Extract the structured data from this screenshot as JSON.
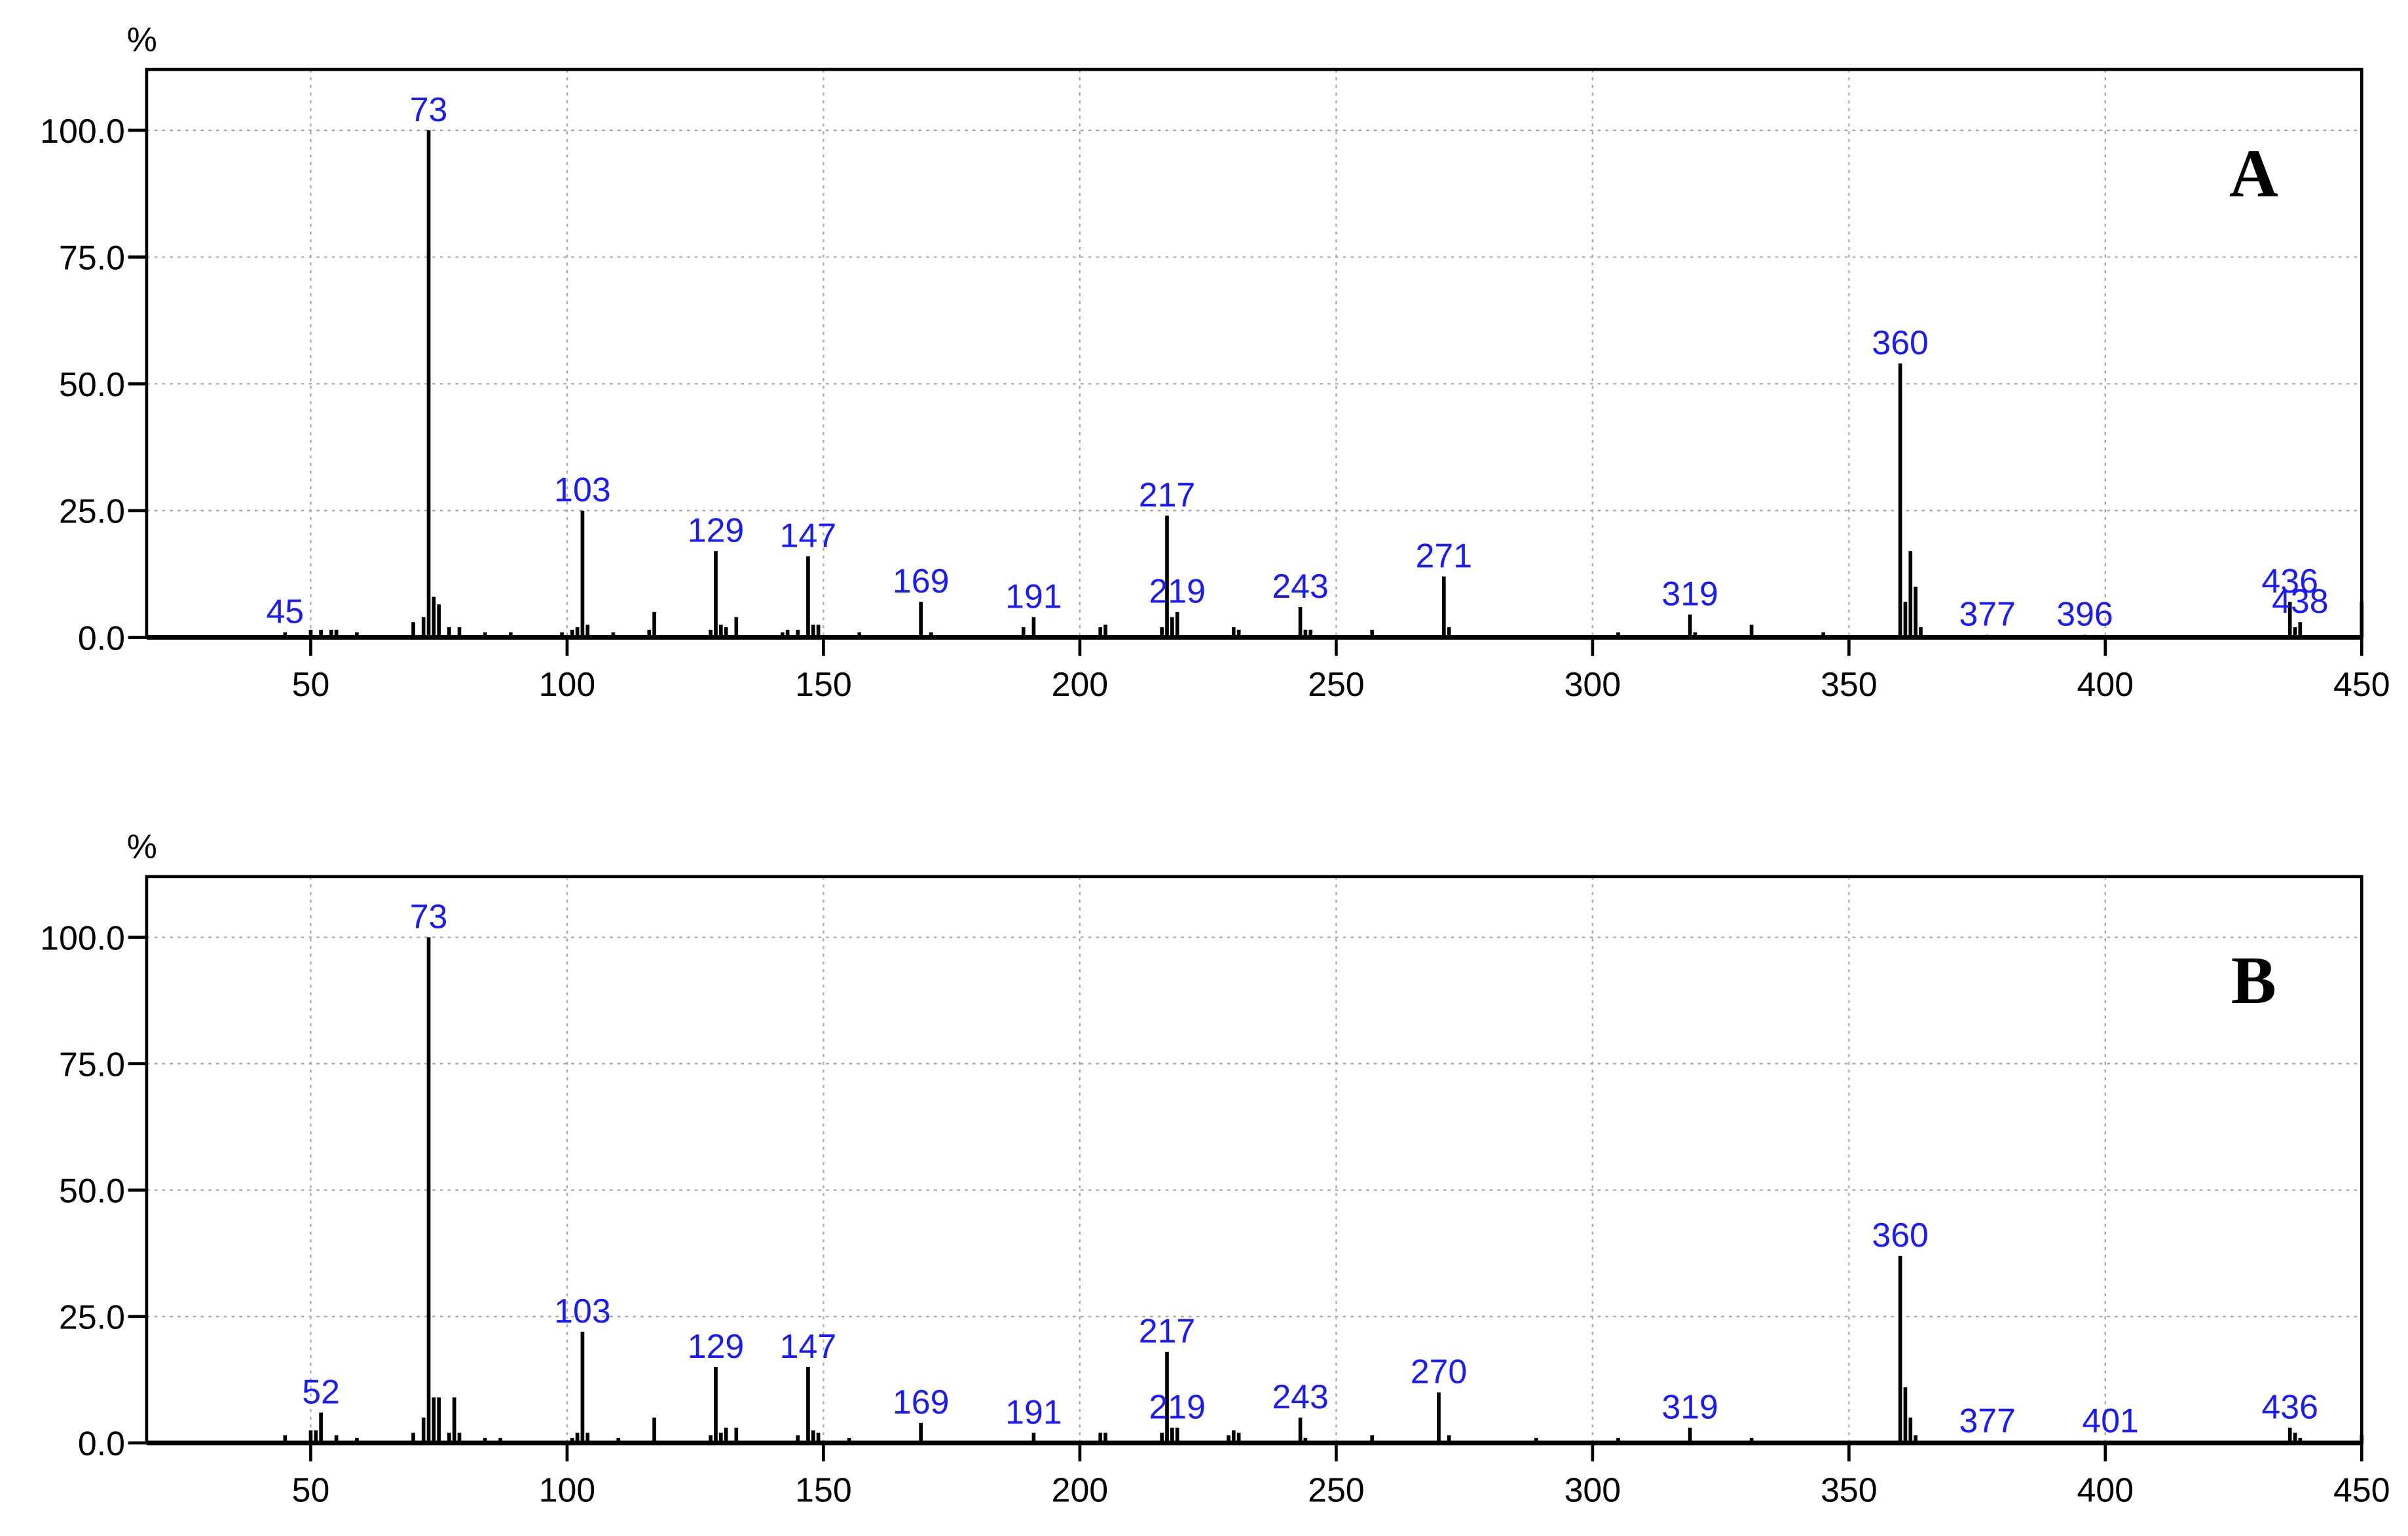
{
  "chart_data": [
    {
      "type": "bar",
      "title": "A",
      "y_label": "%",
      "color": "#000000",
      "label_color": "#1a1aff",
      "grid": true,
      "xlim": [
        18,
        450
      ],
      "ylim": [
        0,
        112
      ],
      "xticks": [
        50,
        100,
        150,
        200,
        250,
        300,
        350,
        400,
        450
      ],
      "yticks": [
        {
          "value": 0,
          "label": "0.0"
        },
        {
          "value": 25,
          "label": "25.0"
        },
        {
          "value": 50,
          "label": "50.0"
        },
        {
          "value": 75,
          "label": "75.0"
        },
        {
          "value": 100,
          "label": "100.0"
        }
      ],
      "x": [
        45,
        50,
        52,
        54,
        55,
        59,
        70,
        72,
        73,
        74,
        75,
        77,
        79,
        84,
        89,
        99,
        101,
        102,
        103,
        104,
        109,
        116,
        117,
        128,
        129,
        130,
        131,
        133,
        142,
        143,
        145,
        147,
        148,
        149,
        157,
        169,
        171,
        189,
        191,
        204,
        205,
        216,
        217,
        218,
        219,
        230,
        231,
        243,
        244,
        245,
        257,
        271,
        272,
        305,
        319,
        320,
        331,
        345,
        360,
        361,
        362,
        363,
        364,
        377,
        396,
        436,
        437,
        438,
        450
      ],
      "values": [
        1,
        1.5,
        1.5,
        1.5,
        1.5,
        1,
        3,
        4,
        100,
        8,
        6.5,
        2,
        2,
        1,
        1,
        1,
        1.5,
        2,
        25,
        2.5,
        1,
        1.5,
        5,
        1.5,
        17,
        2.5,
        2,
        4,
        1,
        1.5,
        1.5,
        16,
        2.5,
        2.5,
        1,
        7,
        1,
        2,
        4,
        2,
        2.5,
        2,
        24,
        4,
        5,
        2,
        1.5,
        6,
        1.5,
        1.5,
        1.5,
        12,
        2,
        1,
        4.5,
        1,
        2.5,
        1,
        54,
        7,
        17,
        10,
        2,
        0.5,
        0.5,
        7,
        2,
        3,
        7
      ],
      "labels": [
        "45",
        null,
        null,
        null,
        null,
        null,
        null,
        null,
        "73",
        null,
        null,
        null,
        null,
        null,
        null,
        null,
        null,
        null,
        "103",
        null,
        null,
        null,
        null,
        null,
        "129",
        null,
        null,
        null,
        null,
        null,
        null,
        "147",
        null,
        null,
        null,
        "169",
        null,
        null,
        "191",
        null,
        null,
        null,
        "217",
        null,
        "219",
        null,
        null,
        "243",
        null,
        null,
        null,
        "271",
        null,
        null,
        "319",
        null,
        null,
        null,
        "360",
        null,
        null,
        null,
        null,
        "377",
        "396",
        "436",
        null,
        "438",
        null
      ]
    },
    {
      "type": "bar",
      "title": "B",
      "y_label": "%",
      "color": "#000000",
      "label_color": "#1a1aff",
      "grid": true,
      "xlim": [
        18,
        450
      ],
      "ylim": [
        0,
        112
      ],
      "xticks": [
        50,
        100,
        150,
        200,
        250,
        300,
        350,
        400,
        450
      ],
      "yticks": [
        {
          "value": 0,
          "label": "0.0"
        },
        {
          "value": 25,
          "label": "25.0"
        },
        {
          "value": 50,
          "label": "50.0"
        },
        {
          "value": 75,
          "label": "75.0"
        },
        {
          "value": 100,
          "label": "100.0"
        }
      ],
      "x": [
        45,
        50,
        51,
        52,
        55,
        59,
        70,
        72,
        73,
        74,
        75,
        77,
        78,
        79,
        84,
        87,
        101,
        102,
        103,
        104,
        110,
        117,
        128,
        129,
        130,
        131,
        133,
        145,
        147,
        148,
        149,
        155,
        169,
        191,
        204,
        205,
        216,
        217,
        218,
        219,
        229,
        230,
        231,
        243,
        244,
        257,
        270,
        272,
        289,
        305,
        319,
        331,
        360,
        361,
        362,
        363,
        377,
        401,
        436,
        437,
        438,
        450
      ],
      "values": [
        1.5,
        2.5,
        2.5,
        6,
        1.5,
        1,
        2,
        5,
        100,
        9,
        9,
        2,
        9,
        2,
        1,
        1,
        1,
        2,
        22,
        2,
        1,
        5,
        1.5,
        15,
        2,
        3,
        3,
        1.5,
        15,
        2.5,
        2,
        1,
        4,
        2,
        2,
        2,
        2,
        18,
        3,
        3,
        1.5,
        2.5,
        2,
        5,
        1,
        1.5,
        10,
        1.5,
        1,
        1,
        3,
        1,
        37,
        11,
        5,
        1.5,
        0.3,
        0.3,
        3,
        2,
        1,
        1.5
      ],
      "labels": [
        null,
        null,
        null,
        "52",
        null,
        null,
        null,
        null,
        "73",
        null,
        null,
        null,
        null,
        null,
        null,
        null,
        null,
        null,
        "103",
        null,
        null,
        null,
        null,
        "129",
        null,
        null,
        null,
        null,
        "147",
        null,
        null,
        null,
        "169",
        "191",
        null,
        null,
        null,
        "217",
        null,
        "219",
        null,
        null,
        null,
        "243",
        null,
        null,
        "270",
        null,
        null,
        null,
        "319",
        null,
        "360",
        null,
        null,
        null,
        "377",
        "401",
        "436",
        null,
        null,
        null
      ]
    }
  ]
}
